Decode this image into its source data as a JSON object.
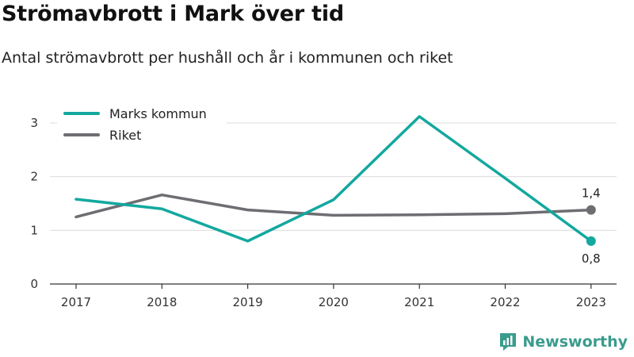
{
  "title": "Strömavbrott i Mark över tid",
  "subtitle": "Antal strömavbrott per hushåll och år i kommunen och riket",
  "brand": "Newsworthy",
  "chart_data": {
    "type": "line",
    "x": [
      "2017",
      "2018",
      "2019",
      "2020",
      "2021",
      "2022",
      "2023"
    ],
    "ylim": [
      0,
      3.2
    ],
    "yticks": [
      "0",
      "1",
      "2",
      "3"
    ],
    "grid": true,
    "legend_position": "top-left",
    "series": [
      {
        "name": "Marks kommun",
        "color": "#13a89e",
        "values": [
          1.58,
          1.4,
          0.8,
          1.57,
          3.12,
          1.97,
          0.8
        ],
        "end_label": "0,8"
      },
      {
        "name": "Riket",
        "color": "#6e6e72",
        "values": [
          1.25,
          1.66,
          1.38,
          1.28,
          1.29,
          1.31,
          1.38
        ],
        "end_label": "1,4"
      }
    ]
  }
}
